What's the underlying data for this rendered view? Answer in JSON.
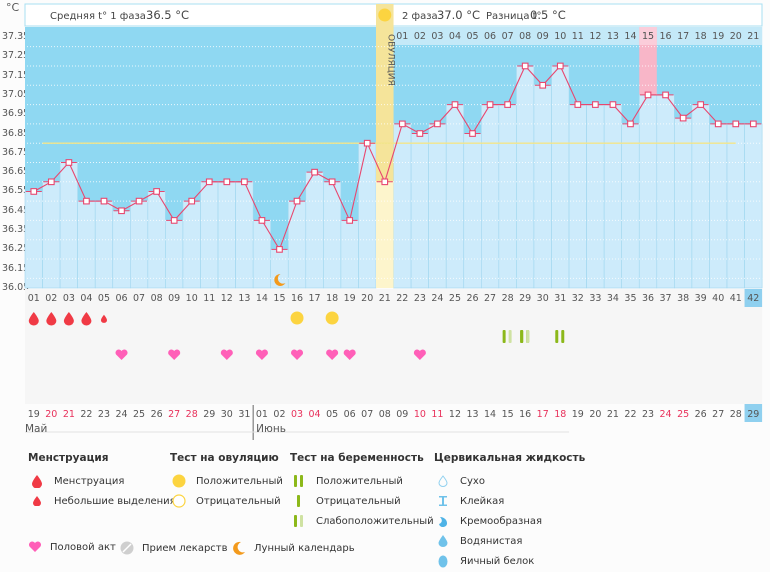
{
  "unit_label": "°C",
  "header": {
    "phase1_label": "Средняя t° 1 фаза",
    "phase1_value": "36.5 °C",
    "phase2_label": "2 фаза",
    "phase2_value": "37.0 °C",
    "diff_label": "Разница t°",
    "diff_value": "0.5 °C",
    "ovulation_label": "ОВУЛЯЦИЯ"
  },
  "chart_data": {
    "type": "line",
    "title": "",
    "ylabel": "°C",
    "ylim": [
      36.05,
      37.35
    ],
    "yticks": [
      "37.35",
      "37.25",
      "37.15",
      "37.05",
      "36.95",
      "36.85",
      "36.75",
      "36.65",
      "36.55",
      "36.45",
      "36.35",
      "36.25",
      "36.15",
      "36.05"
    ],
    "cycle_days": [
      "01",
      "02",
      "03",
      "04",
      "05",
      "06",
      "07",
      "08",
      "09",
      "10",
      "11",
      "12",
      "13",
      "14",
      "15",
      "16",
      "17",
      "18",
      "19",
      "20",
      "21",
      "22",
      "23",
      "24",
      "25",
      "26",
      "27",
      "28",
      "29",
      "30",
      "31",
      "32",
      "33",
      "34",
      "35",
      "36",
      "37",
      "38",
      "39",
      "40",
      "41",
      "42"
    ],
    "post_ovulation_days": [
      "01",
      "02",
      "03",
      "04",
      "05",
      "06",
      "07",
      "08",
      "09",
      "10",
      "11",
      "12",
      "13",
      "14",
      "15",
      "16",
      "17",
      "18",
      "19",
      "20",
      "21"
    ],
    "calendar_dates": [
      "19",
      "20",
      "21",
      "22",
      "23",
      "24",
      "25",
      "26",
      "27",
      "28",
      "29",
      "30",
      "31",
      "01",
      "02",
      "03",
      "04",
      "05",
      "06",
      "07",
      "08",
      "09",
      "10",
      "11",
      "12",
      "13",
      "14",
      "15",
      "16",
      "17",
      "18",
      "19",
      "20",
      "21",
      "22",
      "23",
      "24",
      "25",
      "26",
      "27",
      "28",
      "29"
    ],
    "weekend_date_indices": [
      1,
      2,
      8,
      9,
      15,
      16,
      22,
      23,
      29,
      30,
      36,
      37
    ],
    "months": [
      {
        "name": "Май",
        "start_index": 0
      },
      {
        "name": "Июнь",
        "start_index": 13
      }
    ],
    "series": [
      {
        "name": "Базальная температура",
        "values": [
          36.55,
          36.6,
          36.7,
          36.5,
          36.5,
          36.45,
          36.5,
          36.55,
          36.4,
          36.5,
          36.6,
          36.6,
          36.6,
          36.4,
          36.25,
          36.5,
          36.65,
          36.6,
          36.4,
          36.8,
          36.6,
          36.9,
          36.85,
          36.9,
          37.0,
          36.85,
          37.0,
          37.0,
          37.2,
          37.1,
          37.2,
          37.0,
          37.0,
          37.0,
          36.9,
          37.05,
          37.05,
          36.93,
          37.0,
          36.9,
          36.9,
          36.9
        ]
      }
    ],
    "coverline": 36.8,
    "coverline_from_day": 2,
    "coverline_to_day": 41,
    "ovulation_day": 21,
    "highlight_day": 36,
    "current_day": 42,
    "markers": {
      "menstruation": [
        1,
        2,
        3,
        4
      ],
      "spotting": [
        5
      ],
      "ovulation_test_positive": [
        16,
        18
      ],
      "intercourse": [
        6,
        9,
        12,
        14,
        16,
        18,
        19,
        23
      ],
      "pregnancy_test_positive": [
        29,
        31
      ],
      "pregnancy_test_weak": [
        28
      ],
      "moon": [
        15
      ]
    }
  },
  "legend": {
    "menstruation": {
      "title": "Менструация",
      "items": [
        "Менструация",
        "Небольшие выделения"
      ]
    },
    "ovulation_test": {
      "title": "Тест на овуляцию",
      "items": [
        "Положительный",
        "Отрицательный"
      ]
    },
    "pregnancy_test": {
      "title": "Тест на беременность",
      "items": [
        "Положительный",
        "Отрицательный",
        "Слабоположительный"
      ]
    },
    "cervical": {
      "title": "Цервикальная жидкость",
      "items": [
        "Сухо",
        "Клейкая",
        "Кремообразная",
        "Водянистая",
        "Яичный белок"
      ]
    },
    "bottom": [
      "Половой акт",
      "Прием лекарств",
      "Лунный календарь"
    ]
  },
  "colors": {
    "sky": "#8fd8f2",
    "bar": "#cdebfb",
    "line": "#e8476f",
    "ovulation": "#f5e49a",
    "highlight": "#f8b6c8",
    "coverline": "#f2e58a",
    "current": "#8fd0ef",
    "pink": "#ff5fb8",
    "blood": "#f03a45",
    "sun": "#fcd440",
    "green": "#8cb81a",
    "greenLight": "#cfe2a2",
    "weekend": "#e8315b"
  }
}
